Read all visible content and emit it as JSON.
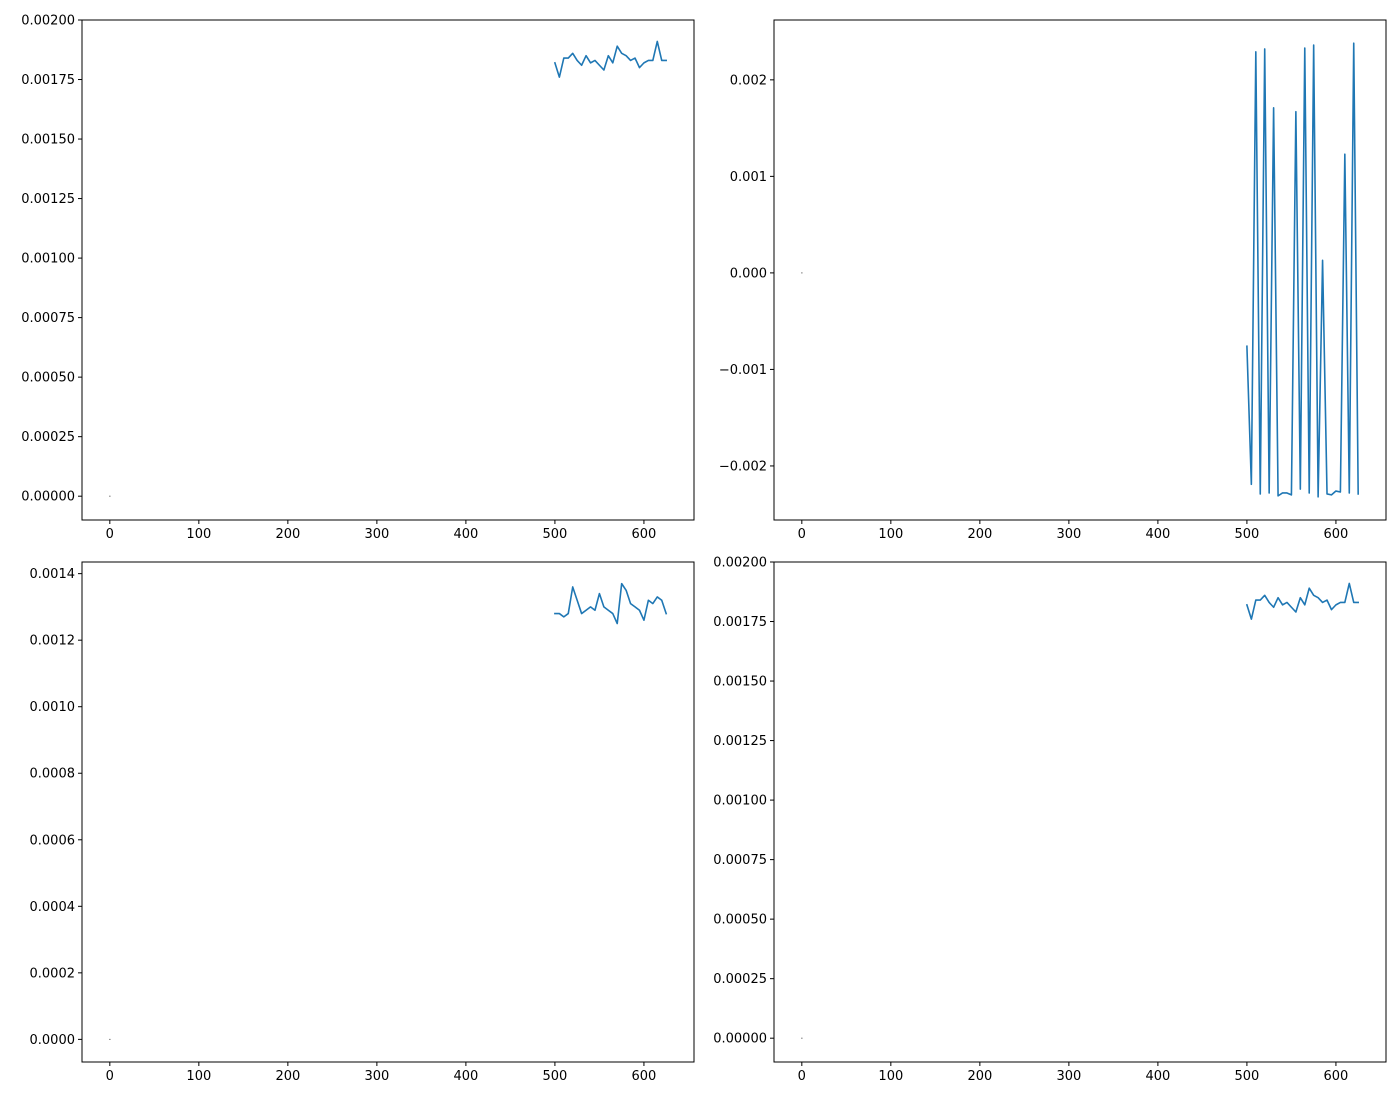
{
  "figure": {
    "background": "#ffffff",
    "line_color": "#1f77b4",
    "marker_color": "#808080"
  },
  "chart_data": [
    {
      "type": "line",
      "title": "",
      "xlabel": "",
      "ylabel": "",
      "xlim": [
        -31.25,
        656.25
      ],
      "ylim": [
        -0.0001,
        0.002
      ],
      "grid": false,
      "xticks": [
        0,
        100,
        200,
        300,
        400,
        500,
        600
      ],
      "xtick_labels": [
        "0",
        "100",
        "200",
        "300",
        "400",
        "500",
        "600"
      ],
      "yticks": [
        0,
        0.00025,
        0.0005,
        0.00075,
        0.001,
        0.00125,
        0.0015,
        0.00175,
        0.002
      ],
      "ytick_labels": [
        "0.00000",
        "0.00025",
        "0.00050",
        "0.00075",
        "0.00100",
        "0.00125",
        "0.00150",
        "0.00175",
        "0.00200"
      ],
      "marker_point": {
        "x": 0,
        "y": 0
      },
      "series": [
        {
          "x": [
            500,
            505,
            510,
            515,
            520,
            525,
            530,
            535,
            540,
            545,
            550,
            555,
            560,
            565,
            570,
            575,
            580,
            585,
            590,
            595,
            600,
            605,
            610,
            615,
            620,
            625
          ],
          "y": [
            0.00182,
            0.00176,
            0.00184,
            0.00184,
            0.00186,
            0.00183,
            0.00181,
            0.00185,
            0.00182,
            0.00183,
            0.00181,
            0.00179,
            0.00185,
            0.00182,
            0.00189,
            0.00186,
            0.00185,
            0.00183,
            0.00184,
            0.0018,
            0.00182,
            0.00183,
            0.00183,
            0.00191,
            0.00183,
            0.00183
          ]
        }
      ]
    },
    {
      "type": "line",
      "title": "",
      "xlabel": "",
      "ylabel": "",
      "xlim": [
        -31.25,
        656.25
      ],
      "ylim": [
        -0.00256,
        0.00262
      ],
      "grid": false,
      "xticks": [
        0,
        100,
        200,
        300,
        400,
        500,
        600
      ],
      "xtick_labels": [
        "0",
        "100",
        "200",
        "300",
        "400",
        "500",
        "600"
      ],
      "yticks": [
        -0.002,
        -0.001,
        0,
        0.001,
        0.002
      ],
      "ytick_labels": [
        "−0.002",
        "−0.001",
        "0.000",
        "0.001",
        "0.002"
      ],
      "marker_point": {
        "x": 0,
        "y": 0
      },
      "series": [
        {
          "x": [
            500,
            505,
            510,
            515,
            520,
            525,
            530,
            535,
            540,
            545,
            550,
            555,
            560,
            565,
            570,
            575,
            580,
            585,
            590,
            595,
            600,
            605,
            610,
            615,
            620,
            625
          ],
          "y": [
            -0.00076,
            -0.00219,
            0.00229,
            -0.00229,
            0.00232,
            -0.00228,
            0.00171,
            -0.00231,
            -0.00228,
            -0.00228,
            -0.0023,
            0.00167,
            -0.00224,
            0.00233,
            -0.00228,
            0.00236,
            -0.00232,
            0.00013,
            -0.00229,
            -0.0023,
            -0.00226,
            -0.00227,
            0.00123,
            -0.00228,
            0.00238,
            -0.00229
          ]
        }
      ]
    },
    {
      "type": "line",
      "title": "",
      "xlabel": "",
      "ylabel": "",
      "xlim": [
        -31.25,
        656.25
      ],
      "ylim": [
        -6.8e-05,
        0.001435
      ],
      "grid": false,
      "xticks": [
        0,
        100,
        200,
        300,
        400,
        500,
        600
      ],
      "xtick_labels": [
        "0",
        "100",
        "200",
        "300",
        "400",
        "500",
        "600"
      ],
      "yticks": [
        0,
        0.0002,
        0.0004,
        0.0006,
        0.0008,
        0.001,
        0.0012,
        0.0014
      ],
      "ytick_labels": [
        "0.0000",
        "0.0002",
        "0.0004",
        "0.0006",
        "0.0008",
        "0.0010",
        "0.0012",
        "0.0014"
      ],
      "marker_point": {
        "x": 0,
        "y": 0
      },
      "series": [
        {
          "x": [
            500,
            505,
            510,
            515,
            520,
            525,
            530,
            535,
            540,
            545,
            550,
            555,
            560,
            565,
            570,
            575,
            580,
            585,
            590,
            595,
            600,
            605,
            610,
            615,
            620,
            625
          ],
          "y": [
            0.00128,
            0.00128,
            0.00127,
            0.00128,
            0.00136,
            0.00132,
            0.00128,
            0.00129,
            0.0013,
            0.00129,
            0.00134,
            0.0013,
            0.00129,
            0.00128,
            0.00125,
            0.00137,
            0.00135,
            0.00131,
            0.0013,
            0.00129,
            0.00126,
            0.00132,
            0.00131,
            0.00133,
            0.00132,
            0.00128
          ]
        }
      ]
    },
    {
      "type": "line",
      "title": "",
      "xlabel": "",
      "ylabel": "",
      "xlim": [
        -31.25,
        656.25
      ],
      "ylim": [
        -0.0001,
        0.002
      ],
      "grid": false,
      "xticks": [
        0,
        100,
        200,
        300,
        400,
        500,
        600
      ],
      "xtick_labels": [
        "0",
        "100",
        "200",
        "300",
        "400",
        "500",
        "600"
      ],
      "yticks": [
        0,
        0.00025,
        0.0005,
        0.00075,
        0.001,
        0.00125,
        0.0015,
        0.00175,
        0.002
      ],
      "ytick_labels": [
        "0.00000",
        "0.00025",
        "0.00050",
        "0.00075",
        "0.00100",
        "0.00125",
        "0.00150",
        "0.00175",
        "0.00200"
      ],
      "marker_point": {
        "x": 0,
        "y": 0
      },
      "series": [
        {
          "x": [
            500,
            505,
            510,
            515,
            520,
            525,
            530,
            535,
            540,
            545,
            550,
            555,
            560,
            565,
            570,
            575,
            580,
            585,
            590,
            595,
            600,
            605,
            610,
            615,
            620,
            625
          ],
          "y": [
            0.00182,
            0.00176,
            0.00184,
            0.00184,
            0.00186,
            0.00183,
            0.00181,
            0.00185,
            0.00182,
            0.00183,
            0.00181,
            0.00179,
            0.00185,
            0.00182,
            0.00189,
            0.00186,
            0.00185,
            0.00183,
            0.00184,
            0.0018,
            0.00182,
            0.00183,
            0.00183,
            0.00191,
            0.00183,
            0.00183
          ]
        }
      ]
    }
  ]
}
